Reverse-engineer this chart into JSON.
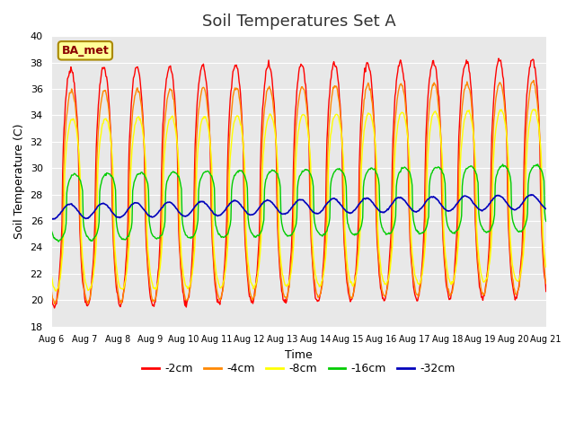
{
  "title": "Soil Temperatures Set A",
  "xlabel": "Time",
  "ylabel": "Soil Temperature (C)",
  "ylim": [
    18,
    40
  ],
  "x_tick_labels": [
    "Aug 6",
    "Aug 7",
    "Aug 8",
    "Aug 9",
    "Aug 10",
    "Aug 11",
    "Aug 12",
    "Aug 13",
    "Aug 14",
    "Aug 15",
    "Aug 16",
    "Aug 17",
    "Aug 18",
    "Aug 19",
    "Aug 20",
    "Aug 21"
  ],
  "series": [
    {
      "label": "-2cm",
      "color": "#ff0000"
    },
    {
      "label": "-4cm",
      "color": "#ff8800"
    },
    {
      "label": "-8cm",
      "color": "#ffff00"
    },
    {
      "label": "-16cm",
      "color": "#00cc00"
    },
    {
      "label": "-32cm",
      "color": "#0000bb"
    }
  ],
  "annotation_text": "BA_met",
  "bg_color": "#e8e8e8",
  "grid_color": "#ffffff",
  "title_fontsize": 13
}
